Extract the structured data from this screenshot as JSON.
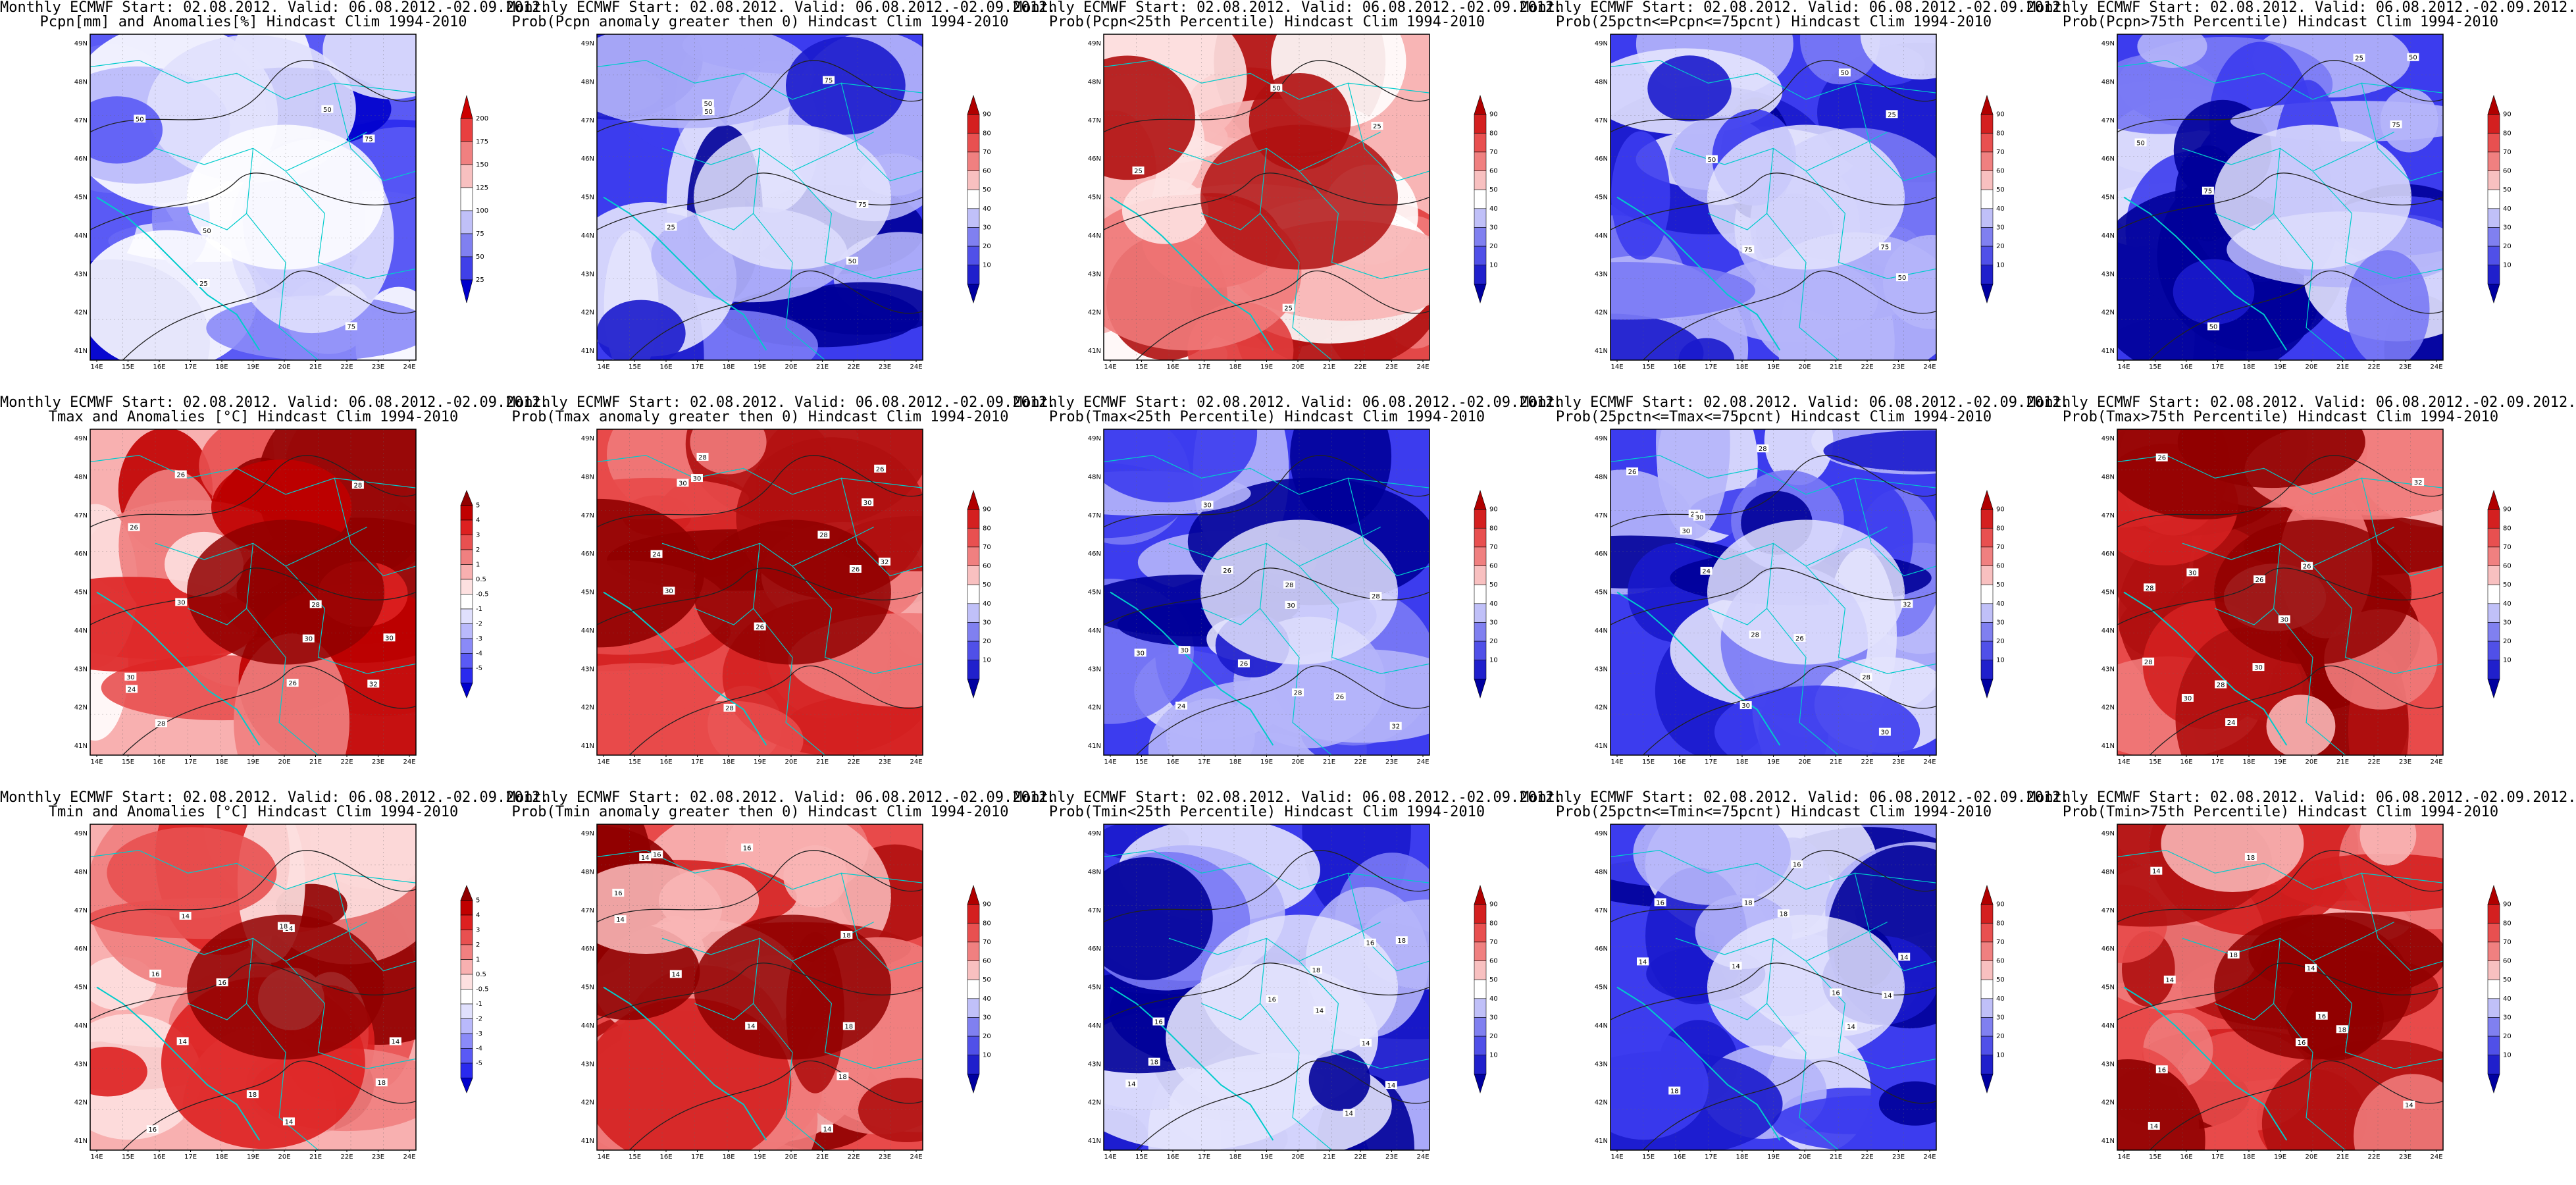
{
  "grid": {
    "lon_ticks": [
      "14E",
      "15E",
      "16E",
      "17E",
      "18E",
      "19E",
      "20E",
      "21E",
      "22E",
      "23E",
      "24E"
    ],
    "lat_ticks": [
      "49N",
      "48N",
      "47N",
      "46N",
      "45N",
      "44N",
      "43N",
      "42N",
      "41N"
    ],
    "lat_ticks_top": [
      "49N",
      "48N",
      "47N",
      "46N",
      "45N",
      "44N",
      "43N",
      "42N",
      "41N"
    ]
  },
  "palettes": {
    "blue_anom": [
      "#0000cc",
      "#2a2aee",
      "#5a5af5",
      "#8a8af8",
      "#b9b9fb",
      "#e0e0fd",
      "#ffffff"
    ],
    "prob_blue": [
      "#000099",
      "#1a1acc",
      "#3c3cee",
      "#7a7af5",
      "#b5b5fa",
      "#e3e3fd"
    ],
    "prob_white": [
      "#ffffff",
      "#fde3e3",
      "#f8b5b5",
      "#f07a7a",
      "#e03c3c",
      "#b01010"
    ],
    "prob_red": [
      "#f8b5b5",
      "#f07a7a",
      "#e84a4a",
      "#d42020",
      "#b01010",
      "#900000"
    ],
    "red_anom": [
      "#ffffff",
      "#fde0e0",
      "#f8b0b0",
      "#f08080",
      "#e85050",
      "#dd2020",
      "#c00000",
      "#900000"
    ]
  },
  "colorbars": {
    "pcpn_anom": {
      "labels": [
        "200",
        "175",
        "150",
        "125",
        "100",
        "75",
        "50",
        "25"
      ],
      "colors": [
        "#cc0000",
        "#e84040",
        "#f08080",
        "#f8c0c0",
        "#ffffff",
        "#c0c0f8",
        "#8080f0",
        "#4040e8",
        "#0000cc"
      ]
    },
    "prob": {
      "labels": [
        "90",
        "80",
        "70",
        "60",
        "50",
        "40",
        "30",
        "20",
        "10"
      ],
      "colors": [
        "#b00000",
        "#d42020",
        "#e85050",
        "#f08080",
        "#f8c0c0",
        "#ffffff",
        "#c0c0f8",
        "#8080f0",
        "#5050e8",
        "#2020cc",
        "#0000a0"
      ]
    },
    "temp_anom": {
      "labels": [
        "5",
        "4",
        "3",
        "2",
        "1",
        "0.5",
        "-0.5",
        "-1",
        "-2",
        "-3",
        "-4",
        "-5"
      ],
      "colors": [
        "#900000",
        "#c00000",
        "#dd2020",
        "#e85050",
        "#f08080",
        "#f8b0b0",
        "#fde0e0",
        "#ffffff",
        "#e0e0fd",
        "#b9b9fb",
        "#8a8af8",
        "#5a5af5",
        "#2a2aee",
        "#0000cc"
      ]
    }
  },
  "panels": [
    {
      "line1": "Monthly ECMWF Start: 02.08.2012. Valid: 06.08.2012.-02.09.2012.",
      "line2": "Pcpn[mm] and Anomalies[%] Hindcast Clim 1994-2010",
      "scheme": "blue_anom",
      "cb": "pcpn_anom",
      "labels": [
        "75",
        "50",
        "50",
        "25",
        "50",
        "75"
      ]
    },
    {
      "line1": "Monthly ECMWF Start: 02.08.2012. Valid: 06.08.2012.-02.09.2012.",
      "line2": "Prob(Pcpn anomaly greater then 0) Hindcast Clim 1994-2010",
      "scheme": "prob_blue",
      "cb": "prob",
      "labels": [
        "75",
        "50",
        "50",
        "25",
        "50",
        "75"
      ]
    },
    {
      "line1": "Monthly ECMWF Start: 02.08.2012. Valid: 06.08.2012.-02.09.2012.",
      "line2": "Prob(Pcpn<25th Percentile) Hindcast Clim 1994-2010",
      "scheme": "prob_white",
      "cb": "prob",
      "labels": [
        "25",
        "50",
        "25",
        "25"
      ]
    },
    {
      "line1": "Monthly ECMWF Start: 02.08.2012. Valid: 06.08.2012.-02.09.2012.",
      "line2": "Prob(25pctn<=Pcpn<=75pcnt) Hindcast Clim 1994-2010",
      "scheme": "prob_blue",
      "cb": "prob",
      "labels": [
        "75",
        "50",
        "50",
        "25",
        "50",
        "75"
      ]
    },
    {
      "line1": "Monthly ECMWF Start: 02.08.2012. Valid: 06.08.2012.-02.09.2012.",
      "line2": "Prob(Pcpn>75th Percentile) Hindcast Clim 1994-2010",
      "scheme": "prob_blue",
      "cb": "prob",
      "labels": [
        "75",
        "50",
        "50",
        "25",
        "50",
        "75"
      ]
    },
    {
      "line1": "Monthly ECMWF Start: 02.08.2012. Valid: 06.08.2012.-02.09.2012.",
      "line2": "Tmax and Anomalies [°C] Hindcast Clim 1994-2010",
      "scheme": "red_anom",
      "cb": "temp_anom",
      "labels": [
        "26",
        "28",
        "24",
        "26",
        "30",
        "32",
        "30",
        "30",
        "28",
        "28",
        "30",
        "26"
      ]
    },
    {
      "line1": "Monthly ECMWF Start: 02.08.2012. Valid: 06.08.2012.-02.09.2012.",
      "line2": "Prob(Tmax anomaly greater then 0) Hindcast Clim 1994-2010",
      "scheme": "prob_red",
      "cb": "prob",
      "labels": [
        "26",
        "28",
        "24",
        "26",
        "30",
        "32",
        "30",
        "30",
        "28",
        "28",
        "30",
        "26"
      ]
    },
    {
      "line1": "Monthly ECMWF Start: 02.08.2012. Valid: 06.08.2012.-02.09.2012.",
      "line2": "Prob(Tmax<25th Percentile) Hindcast Clim 1994-2010",
      "scheme": "prob_blue",
      "cb": "prob",
      "labels": [
        "26",
        "28",
        "24",
        "26",
        "30",
        "32",
        "30",
        "30",
        "28",
        "28",
        "30",
        "26"
      ]
    },
    {
      "line1": "Monthly ECMWF Start: 02.08.2012. Valid: 06.08.2012.-02.09.2012.",
      "line2": "Prob(25pctn<=Tmax<=75pcnt) Hindcast Clim 1994-2010",
      "scheme": "prob_blue",
      "cb": "prob",
      "labels": [
        "26",
        "28",
        "24",
        "26",
        "30",
        "32",
        "30",
        "30",
        "28",
        "28",
        "30",
        "26"
      ]
    },
    {
      "line1": "Monthly ECMWF Start: 02.08.2012. Valid: 06.08.2012.-02.09.2012.",
      "line2": "Prob(Tmax>75th Percentile) Hindcast Clim 1994-2010",
      "scheme": "prob_red",
      "cb": "prob",
      "labels": [
        "26",
        "28",
        "24",
        "26",
        "30",
        "32",
        "30",
        "30",
        "28",
        "28",
        "30",
        "26"
      ]
    },
    {
      "line1": "Monthly ECMWF Start: 02.08.2012. Valid: 06.08.2012.-02.09.2012.",
      "line2": "Tmin and Anomalies [°C] Hindcast Clim 1994-2010",
      "scheme": "red_anom",
      "cb": "temp_anom",
      "labels": [
        "14",
        "14",
        "16",
        "18",
        "16",
        "14",
        "14",
        "18",
        "16",
        "14",
        "18"
      ]
    },
    {
      "line1": "Monthly ECMWF Start: 02.08.2012. Valid: 06.08.2012.-02.09.2012.",
      "line2": "Prob(Tmin anomaly greater then 0) Hindcast Clim 1994-2010",
      "scheme": "prob_red",
      "cb": "prob",
      "labels": [
        "14",
        "14",
        "16",
        "18",
        "16",
        "14",
        "14",
        "18",
        "16",
        "14",
        "18"
      ]
    },
    {
      "line1": "Monthly ECMWF Start: 02.08.2012. Valid: 06.08.2012.-02.09.2012.",
      "line2": "Prob(Tmin<25th Percentile) Hindcast Clim 1994-2010",
      "scheme": "prob_blue",
      "cb": "prob",
      "labels": [
        "14",
        "14",
        "16",
        "18",
        "16",
        "14",
        "14",
        "18",
        "16",
        "14",
        "18"
      ]
    },
    {
      "line1": "Monthly ECMWF Start: 02.08.2012. Valid: 06.08.2012.-02.09.2012.",
      "line2": "Prob(25pctn<=Tmin<=75pcnt) Hindcast Clim 1994-2010",
      "scheme": "prob_blue",
      "cb": "prob",
      "labels": [
        "14",
        "14",
        "16",
        "18",
        "16",
        "14",
        "14",
        "18",
        "16",
        "14",
        "18"
      ]
    },
    {
      "line1": "Monthly ECMWF Start: 02.08.2012. Valid: 06.08.2012.-02.09.2012.",
      "line2": "Prob(Tmin>75th Percentile) Hindcast Clim 1994-2010",
      "scheme": "prob_red",
      "cb": "prob",
      "labels": [
        "14",
        "14",
        "16",
        "18",
        "16",
        "14",
        "14",
        "18",
        "16",
        "14",
        "18"
      ]
    }
  ]
}
